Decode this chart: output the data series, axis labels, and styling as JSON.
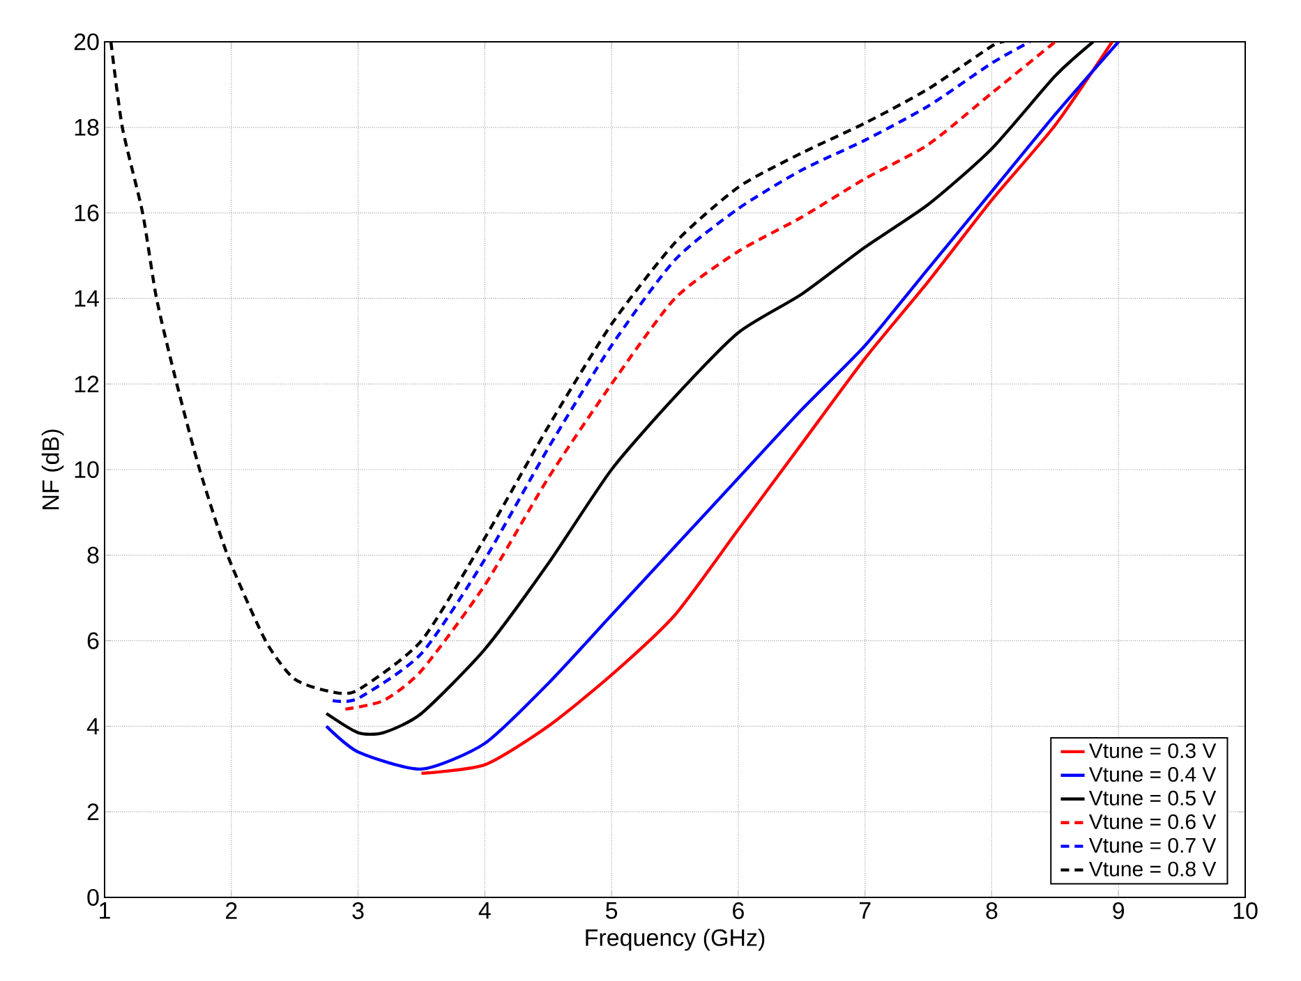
{
  "chart_data": {
    "type": "line",
    "xlabel": "Frequency (GHz)",
    "ylabel": "NF (dB)",
    "xlim": [
      1,
      10
    ],
    "ylim": [
      0,
      20
    ],
    "xticks": [
      1,
      2,
      3,
      4,
      5,
      6,
      7,
      8,
      9,
      10
    ],
    "yticks": [
      0,
      2,
      4,
      6,
      8,
      10,
      12,
      14,
      16,
      18,
      20
    ],
    "grid": true,
    "legend": "bottom right",
    "marker": "none",
    "series": [
      {
        "name": "Vtune = 0.3 V",
        "color": "#ff0000",
        "line_style": "solid",
        "x": [
          3.5,
          4,
          4.5,
          5,
          5.5,
          6,
          6.5,
          7,
          7.5,
          8,
          8.5,
          8.95
        ],
        "values": [
          2.9,
          3.1,
          4,
          5.2,
          6.6,
          8.6,
          10.6,
          12.6,
          14.4,
          16.3,
          18.05,
          20
        ]
      },
      {
        "name": "Vtune = 0.4 V",
        "color": "#0000ff",
        "line_style": "solid",
        "x": [
          2.75,
          3,
          3.5,
          4,
          4.5,
          5,
          5.5,
          6,
          6.5,
          7,
          7.5,
          8,
          8.5,
          9
        ],
        "values": [
          4,
          3.4,
          3,
          3.6,
          5,
          6.6,
          8.2,
          9.8,
          11.4,
          12.9,
          14.7,
          16.5,
          18.3,
          20
        ]
      },
      {
        "name": "Vtune = 0.5 V",
        "color": "#000000",
        "line_style": "solid",
        "x": [
          2.75,
          3,
          3.2,
          3.5,
          4,
          4.5,
          5,
          5.5,
          6,
          6.5,
          7,
          7.5,
          8,
          8.5,
          8.8
        ],
        "values": [
          4.3,
          3.85,
          3.85,
          4.3,
          5.8,
          7.8,
          10,
          11.7,
          13.2,
          14.1,
          15.2,
          16.2,
          17.5,
          19.2,
          20
        ]
      },
      {
        "name": "Vtune = 0.6 V",
        "color": "#ff0000",
        "line_style": "dashed",
        "x": [
          2.9,
          3.2,
          3.5,
          4,
          4.5,
          5,
          5.5,
          6,
          6.5,
          7,
          7.5,
          8,
          8.5
        ],
        "values": [
          4.4,
          4.6,
          5.3,
          7.3,
          9.8,
          12,
          14,
          15.1,
          15.9,
          16.8,
          17.6,
          18.8,
          20
        ]
      },
      {
        "name": "Vtune = 0.7 V",
        "color": "#0000ff",
        "line_style": "dashed",
        "x": [
          2.8,
          3,
          3.5,
          4,
          4.5,
          5,
          5.5,
          6,
          6.5,
          7,
          7.5,
          8,
          8.3
        ],
        "values": [
          4.6,
          4.65,
          5.7,
          7.9,
          10.5,
          12.9,
          14.9,
          16.1,
          17,
          17.7,
          18.5,
          19.5,
          20
        ]
      },
      {
        "name": "Vtune = 0.8 V",
        "color": "#000000",
        "line_style": "dashed",
        "x": [
          1.05,
          1.14,
          1.3,
          1.41,
          1.57,
          1.75,
          1.97,
          2.27,
          2.5,
          2.8,
          3,
          3.5,
          4,
          4.5,
          5,
          5.5,
          6,
          6.5,
          7,
          7.5,
          8,
          8.1
        ],
        "values": [
          20,
          18,
          16,
          14,
          12,
          10,
          8,
          6,
          5.1,
          4.8,
          4.85,
          6,
          8.4,
          11,
          13.4,
          15.3,
          16.6,
          17.4,
          18.1,
          18.9,
          19.9,
          20
        ]
      }
    ]
  }
}
